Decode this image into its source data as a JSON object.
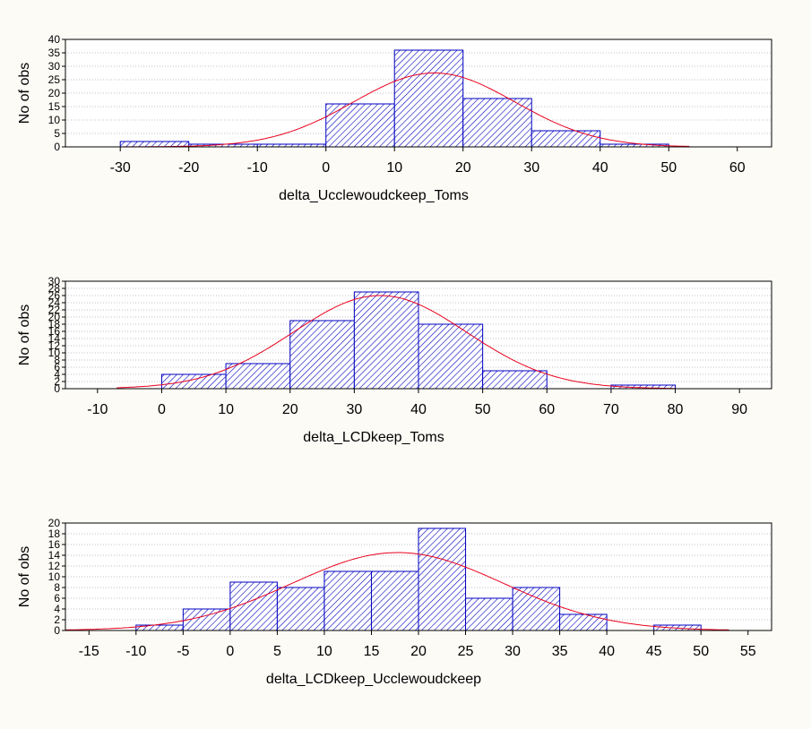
{
  "chart_data": [
    {
      "type": "bar",
      "subtype": "histogram",
      "xlabel": "delta_Ucclewoudckeep_Toms",
      "ylabel": "No of obs",
      "xlim": [
        -38,
        65
      ],
      "ylim": [
        0,
        40
      ],
      "x_ticks": [
        -30,
        -20,
        -10,
        0,
        10,
        20,
        30,
        40,
        50,
        60
      ],
      "y_ticks": [
        0,
        5,
        10,
        15,
        20,
        25,
        30,
        35,
        40
      ],
      "grid": "horizontal-dotted",
      "bins": [
        {
          "x0": -30,
          "x1": -20,
          "count": 2
        },
        {
          "x0": -20,
          "x1": -10,
          "count": 1
        },
        {
          "x0": -10,
          "x1": 0,
          "count": 1
        },
        {
          "x0": 0,
          "x1": 10,
          "count": 16
        },
        {
          "x0": 10,
          "x1": 20,
          "count": 36
        },
        {
          "x0": 20,
          "x1": 30,
          "count": 18
        },
        {
          "x0": 30,
          "x1": 40,
          "count": 6
        },
        {
          "x0": 40,
          "x1": 50,
          "count": 1
        }
      ],
      "fit": {
        "kind": "normal",
        "mean": 15.8,
        "sd": 11.8,
        "peak": 27.5,
        "x_range": [
          -36,
          53
        ]
      },
      "colors": {
        "bar_stroke": "#0000c0",
        "hatch": "#0000c0",
        "fit": "#e8001c",
        "grid": "#c0c0c0"
      }
    },
    {
      "type": "bar",
      "subtype": "histogram",
      "xlabel": "delta_LCDkeep_Toms",
      "ylabel": "No of obs",
      "xlim": [
        -15,
        95
      ],
      "ylim": [
        0,
        30
      ],
      "x_ticks": [
        -10,
        0,
        10,
        20,
        30,
        40,
        50,
        60,
        70,
        80,
        90
      ],
      "y_ticks": [
        0,
        2,
        4,
        6,
        8,
        10,
        12,
        14,
        16,
        18,
        20,
        22,
        24,
        26,
        28,
        30
      ],
      "grid": "horizontal-dotted",
      "bins": [
        {
          "x0": 0,
          "x1": 10,
          "count": 4
        },
        {
          "x0": 10,
          "x1": 20,
          "count": 7
        },
        {
          "x0": 20,
          "x1": 30,
          "count": 19
        },
        {
          "x0": 30,
          "x1": 40,
          "count": 27
        },
        {
          "x0": 40,
          "x1": 50,
          "count": 18
        },
        {
          "x0": 50,
          "x1": 60,
          "count": 5
        },
        {
          "x0": 70,
          "x1": 80,
          "count": 1
        }
      ],
      "fit": {
        "kind": "normal",
        "mean": 34,
        "sd": 13.5,
        "peak": 26,
        "x_range": [
          -7,
          80
        ]
      },
      "colors": {
        "bar_stroke": "#0000c0",
        "hatch": "#0000c0",
        "fit": "#e8001c",
        "grid": "#c0c0c0"
      }
    },
    {
      "type": "bar",
      "subtype": "histogram",
      "xlabel": "delta_LCDkeep_Ucclewoudckeep",
      "ylabel": "No of obs",
      "xlim": [
        -17.5,
        57.5
      ],
      "ylim": [
        0,
        20
      ],
      "x_ticks": [
        -15,
        -10,
        -5,
        0,
        5,
        10,
        15,
        20,
        25,
        30,
        35,
        40,
        45,
        50,
        55
      ],
      "y_ticks": [
        0,
        2,
        4,
        6,
        8,
        10,
        12,
        14,
        16,
        18,
        20
      ],
      "grid": "horizontal-dotted",
      "bins": [
        {
          "x0": -10,
          "x1": -5,
          "count": 1
        },
        {
          "x0": -5,
          "x1": 0,
          "count": 4
        },
        {
          "x0": 0,
          "x1": 5,
          "count": 9
        },
        {
          "x0": 5,
          "x1": 10,
          "count": 8
        },
        {
          "x0": 10,
          "x1": 15,
          "count": 11
        },
        {
          "x0": 15,
          "x1": 20,
          "count": 11
        },
        {
          "x0": 20,
          "x1": 25,
          "count": 19
        },
        {
          "x0": 25,
          "x1": 30,
          "count": 6
        },
        {
          "x0": 30,
          "x1": 35,
          "count": 8
        },
        {
          "x0": 35,
          "x1": 40,
          "count": 3
        },
        {
          "x0": 45,
          "x1": 50,
          "count": 1
        }
      ],
      "fit": {
        "kind": "normal",
        "mean": 17.8,
        "sd": 11.2,
        "peak": 14.5,
        "x_range": [
          -17.5,
          53
        ]
      },
      "colors": {
        "bar_stroke": "#0000c0",
        "hatch": "#0000c0",
        "fit": "#e8001c",
        "grid": "#c0c0c0"
      }
    }
  ]
}
